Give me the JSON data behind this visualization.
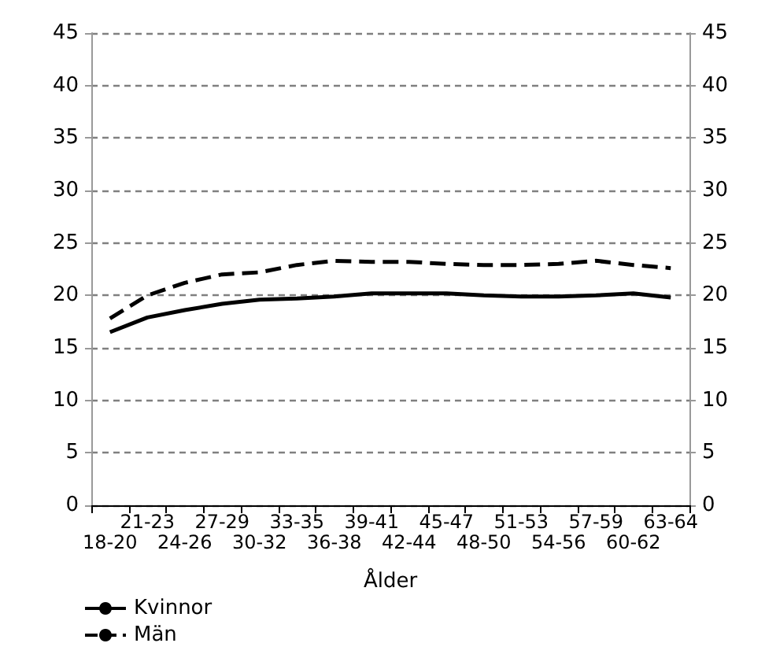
{
  "chart_data": {
    "type": "line",
    "xlabel": "Ålder",
    "categories": [
      "18-20",
      "21-23",
      "24-26",
      "27-29",
      "30-32",
      "33-35",
      "36-38",
      "39-41",
      "42-44",
      "45-47",
      "48-50",
      "51-53",
      "54-56",
      "57-59",
      "60-62",
      "63-64"
    ],
    "series": [
      {
        "name": "Kvinnor",
        "color": "#000000",
        "line_style": "solid",
        "values": [
          16.5,
          17.9,
          18.6,
          19.2,
          19.6,
          19.7,
          19.9,
          20.2,
          20.2,
          20.2,
          20.0,
          19.9,
          19.9,
          20.0,
          20.2,
          19.8
        ]
      },
      {
        "name": "Män",
        "color": "#000000",
        "line_style": "dashed",
        "values": [
          17.8,
          20.0,
          21.2,
          22.0,
          22.2,
          22.9,
          23.3,
          23.2,
          23.2,
          23.0,
          22.9,
          22.9,
          23.0,
          23.3,
          22.9,
          22.6
        ]
      }
    ],
    "ylim": [
      0,
      45
    ],
    "yticks": [
      0,
      5,
      10,
      15,
      20,
      25,
      30,
      35,
      40,
      45
    ],
    "y2lim": [
      0,
      45
    ],
    "y2ticks": [
      0,
      5,
      10,
      15,
      20,
      25,
      30,
      35,
      40,
      45
    ],
    "grid": "y",
    "legend": "bottom left",
    "marker": "none"
  }
}
